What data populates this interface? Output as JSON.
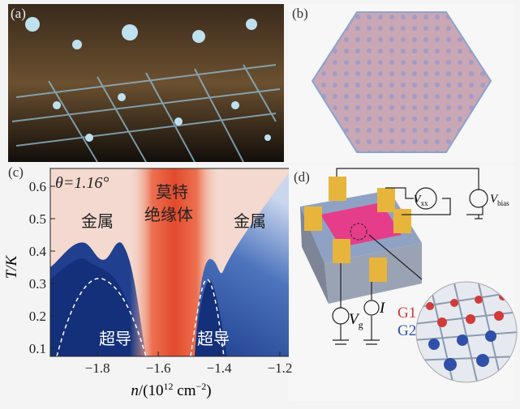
{
  "panel_labels": [
    "(a)",
    "(b)",
    "(c)",
    "(d)"
  ],
  "chart_data": {
    "type": "heatmap",
    "annotations": {
      "theta": "θ=1.16°",
      "mott_1": "莫特",
      "mott_2": "绝缘体",
      "metal_left": "金属",
      "metal_right": "金属",
      "sc_left": "超导",
      "sc_right": "超导"
    },
    "xlabel": {
      "var": "n",
      "pre": "/(10",
      "exp": "12",
      "unit": " cm",
      "unit_exp": "−2",
      "post": ")"
    },
    "ylabel": "T/K",
    "xlim": [
      -1.955,
      -1.16
    ],
    "ylim": [
      0.075,
      0.655
    ],
    "xticks": [
      {
        "value": -1.8,
        "label": "−1.8"
      },
      {
        "value": -1.6,
        "label": "−1.6"
      },
      {
        "value": -1.4,
        "label": "−1.4"
      },
      {
        "value": -1.2,
        "label": "−1.2"
      }
    ],
    "yticks": [
      0.1,
      0.2,
      0.3,
      0.4,
      0.5,
      0.6
    ]
  },
  "diagram": {
    "vxx": "V",
    "vxx_sub": "xx",
    "vbias": "V",
    "vbias_sub": "bias",
    "vg": "V",
    "vg_sub": "g",
    "current": "I",
    "g1": "G1",
    "g2": "G2"
  }
}
